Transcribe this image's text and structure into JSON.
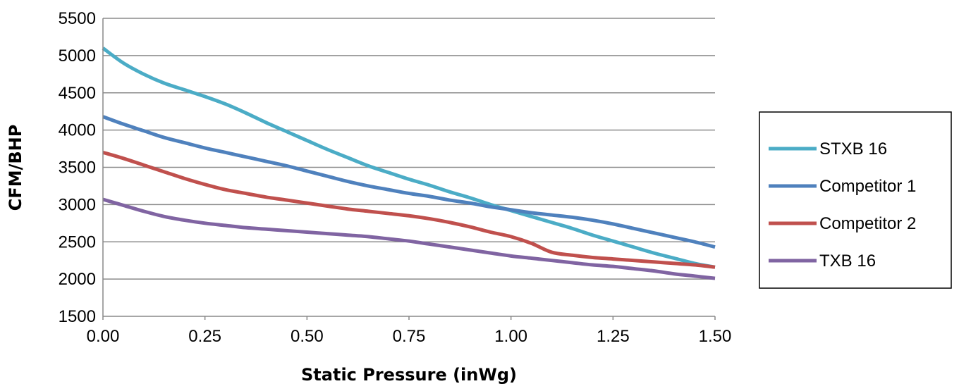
{
  "chart_data": {
    "type": "line",
    "title": "",
    "xlabel": "Static Pressure (inWg)",
    "ylabel": "CFM/BHP",
    "xlim": [
      0,
      1.5
    ],
    "ylim": [
      1500,
      5500
    ],
    "x_ticks": [
      "0.00",
      "0.25",
      "0.50",
      "0.75",
      "1.00",
      "1.25",
      "1.50"
    ],
    "y_ticks": [
      "1500",
      "2000",
      "2500",
      "3000",
      "3500",
      "4000",
      "4500",
      "5000",
      "5500"
    ],
    "grid": "horizontal",
    "legend_position": "right",
    "series": [
      {
        "name": "STXB 16",
        "color": "#4BACC6",
        "points": [
          [
            0,
            5100
          ],
          [
            0.05,
            4900
          ],
          [
            0.1,
            4750
          ],
          [
            0.15,
            4630
          ],
          [
            0.2,
            4540
          ],
          [
            0.25,
            4450
          ],
          [
            0.3,
            4350
          ],
          [
            0.35,
            4230
          ],
          [
            0.4,
            4100
          ],
          [
            0.45,
            3980
          ],
          [
            0.5,
            3860
          ],
          [
            0.55,
            3740
          ],
          [
            0.6,
            3630
          ],
          [
            0.65,
            3520
          ],
          [
            0.7,
            3430
          ],
          [
            0.75,
            3340
          ],
          [
            0.8,
            3260
          ],
          [
            0.85,
            3170
          ],
          [
            0.9,
            3090
          ],
          [
            0.95,
            3000
          ],
          [
            1.0,
            2920
          ],
          [
            1.05,
            2840
          ],
          [
            1.1,
            2760
          ],
          [
            1.15,
            2680
          ],
          [
            1.2,
            2590
          ],
          [
            1.25,
            2510
          ],
          [
            1.3,
            2430
          ],
          [
            1.35,
            2350
          ],
          [
            1.4,
            2280
          ],
          [
            1.45,
            2210
          ],
          [
            1.5,
            2160
          ]
        ]
      },
      {
        "name": "Competitor 1",
        "color": "#4F81BD",
        "points": [
          [
            0,
            4180
          ],
          [
            0.05,
            4080
          ],
          [
            0.1,
            3990
          ],
          [
            0.15,
            3900
          ],
          [
            0.2,
            3830
          ],
          [
            0.25,
            3760
          ],
          [
            0.3,
            3700
          ],
          [
            0.35,
            3640
          ],
          [
            0.4,
            3580
          ],
          [
            0.45,
            3520
          ],
          [
            0.5,
            3450
          ],
          [
            0.55,
            3380
          ],
          [
            0.6,
            3310
          ],
          [
            0.65,
            3250
          ],
          [
            0.7,
            3200
          ],
          [
            0.75,
            3150
          ],
          [
            0.8,
            3110
          ],
          [
            0.85,
            3060
          ],
          [
            0.9,
            3020
          ],
          [
            0.95,
            2970
          ],
          [
            1.0,
            2930
          ],
          [
            1.05,
            2890
          ],
          [
            1.1,
            2860
          ],
          [
            1.15,
            2830
          ],
          [
            1.2,
            2790
          ],
          [
            1.25,
            2740
          ],
          [
            1.3,
            2680
          ],
          [
            1.35,
            2620
          ],
          [
            1.4,
            2560
          ],
          [
            1.45,
            2500
          ],
          [
            1.5,
            2430
          ]
        ]
      },
      {
        "name": "Competitor 2",
        "color": "#C0504D",
        "points": [
          [
            0,
            3700
          ],
          [
            0.05,
            3620
          ],
          [
            0.1,
            3530
          ],
          [
            0.15,
            3440
          ],
          [
            0.2,
            3350
          ],
          [
            0.25,
            3270
          ],
          [
            0.3,
            3200
          ],
          [
            0.35,
            3150
          ],
          [
            0.4,
            3100
          ],
          [
            0.45,
            3060
          ],
          [
            0.5,
            3020
          ],
          [
            0.55,
            2980
          ],
          [
            0.6,
            2940
          ],
          [
            0.65,
            2910
          ],
          [
            0.7,
            2880
          ],
          [
            0.75,
            2850
          ],
          [
            0.8,
            2810
          ],
          [
            0.85,
            2760
          ],
          [
            0.9,
            2700
          ],
          [
            0.95,
            2630
          ],
          [
            1.0,
            2570
          ],
          [
            1.05,
            2480
          ],
          [
            1.1,
            2360
          ],
          [
            1.15,
            2320
          ],
          [
            1.2,
            2290
          ],
          [
            1.25,
            2270
          ],
          [
            1.3,
            2250
          ],
          [
            1.35,
            2230
          ],
          [
            1.4,
            2210
          ],
          [
            1.45,
            2190
          ],
          [
            1.5,
            2160
          ]
        ]
      },
      {
        "name": "TXB 16",
        "color": "#8064A2",
        "points": [
          [
            0,
            3070
          ],
          [
            0.05,
            2990
          ],
          [
            0.1,
            2910
          ],
          [
            0.15,
            2840
          ],
          [
            0.2,
            2790
          ],
          [
            0.25,
            2750
          ],
          [
            0.3,
            2720
          ],
          [
            0.35,
            2690
          ],
          [
            0.4,
            2670
          ],
          [
            0.45,
            2650
          ],
          [
            0.5,
            2630
          ],
          [
            0.55,
            2610
          ],
          [
            0.6,
            2590
          ],
          [
            0.65,
            2570
          ],
          [
            0.7,
            2540
          ],
          [
            0.75,
            2510
          ],
          [
            0.8,
            2470
          ],
          [
            0.85,
            2430
          ],
          [
            0.9,
            2390
          ],
          [
            0.95,
            2350
          ],
          [
            1.0,
            2310
          ],
          [
            1.05,
            2280
          ],
          [
            1.1,
            2250
          ],
          [
            1.15,
            2220
          ],
          [
            1.2,
            2190
          ],
          [
            1.25,
            2170
          ],
          [
            1.3,
            2140
          ],
          [
            1.35,
            2110
          ],
          [
            1.4,
            2070
          ],
          [
            1.45,
            2040
          ],
          [
            1.5,
            2010
          ]
        ]
      }
    ]
  }
}
